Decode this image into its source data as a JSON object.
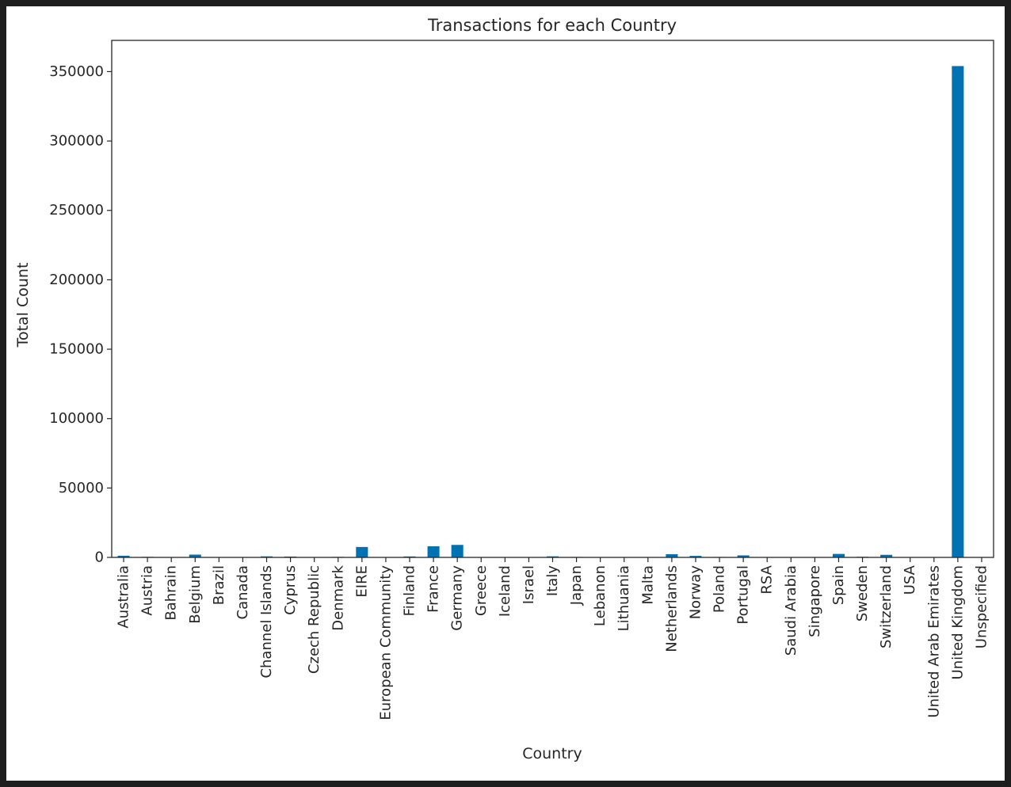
{
  "chart_data": {
    "type": "bar",
    "title": "Transactions for each Country",
    "xlabel": "Country",
    "ylabel": "Total Count",
    "ylim": [
      0,
      372500
    ],
    "yticks": [
      0,
      50000,
      100000,
      150000,
      200000,
      250000,
      300000,
      350000
    ],
    "ytick_labels": [
      "0",
      "50000",
      "100000",
      "150000",
      "200000",
      "250000",
      "300000",
      "350000"
    ],
    "grid": false,
    "legend": "none",
    "bar_color": "#0072b2",
    "categories": [
      "Australia",
      "Austria",
      "Bahrain",
      "Belgium",
      "Brazil",
      "Canada",
      "Channel Islands",
      "Cyprus",
      "Czech Republic",
      "Denmark",
      "EIRE",
      "European Community",
      "Finland",
      "France",
      "Germany",
      "Greece",
      "Iceland",
      "Israel",
      "Italy",
      "Japan",
      "Lebanon",
      "Lithuania",
      "Malta",
      "Netherlands",
      "Norway",
      "Poland",
      "Portugal",
      "RSA",
      "Saudi Arabia",
      "Singapore",
      "Spain",
      "Sweden",
      "Switzerland",
      "USA",
      "United Arab Emirates",
      "United Kingdom",
      "Unspecified"
    ],
    "values": [
      1200,
      400,
      20,
      2000,
      30,
      150,
      750,
      600,
      30,
      380,
      7500,
      60,
      680,
      8000,
      9000,
      145,
      180,
      250,
      760,
      350,
      45,
      35,
      110,
      2300,
      1080,
      330,
      1450,
      55,
      10,
      230,
      2500,
      450,
      1850,
      290,
      60,
      354000,
      240
    ]
  }
}
